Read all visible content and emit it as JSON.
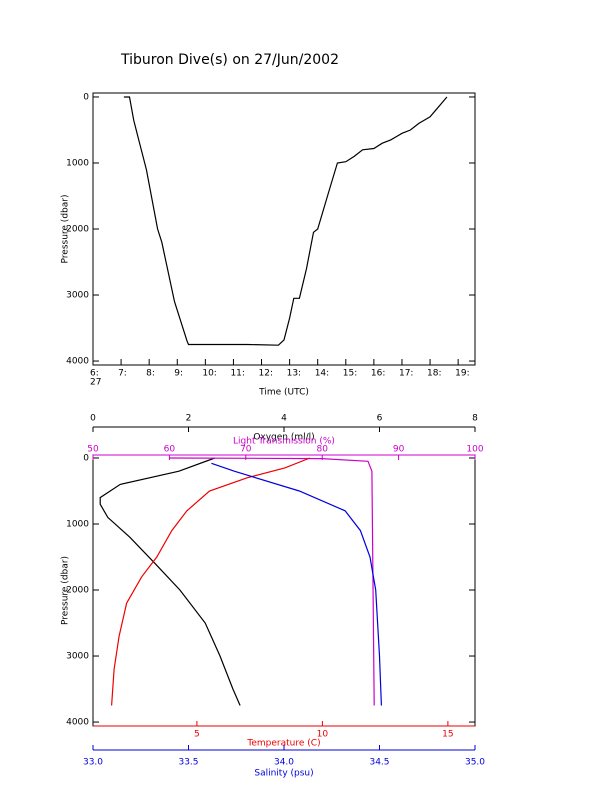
{
  "chart_data": [
    {
      "type": "line",
      "title": "Tiburon Dive(s) on 27/Jun/2002",
      "xlabel": "Time (UTC)",
      "ylabel": "Pressure (dbar)",
      "xlim": [
        6,
        19.6
      ],
      "xticks": [
        {
          "value": 6,
          "label": "6:"
        },
        {
          "value": 7,
          "label": "7:"
        },
        {
          "value": 8,
          "label": "8:"
        },
        {
          "value": 9,
          "label": "9:"
        },
        {
          "value": 10,
          "label": "10:"
        },
        {
          "value": 11,
          "label": "11:"
        },
        {
          "value": 12,
          "label": "12:"
        },
        {
          "value": 13,
          "label": "13:"
        },
        {
          "value": 14,
          "label": "14:"
        },
        {
          "value": 15,
          "label": "15:"
        },
        {
          "value": 16,
          "label": "16:"
        },
        {
          "value": 17,
          "label": "17:"
        },
        {
          "value": 18,
          "label": "18:"
        },
        {
          "value": 19,
          "label": "19:"
        }
      ],
      "x_date_label": "27",
      "ylim": [
        4060,
        -60
      ],
      "yticks": [
        0,
        1000,
        2000,
        3000,
        4000
      ],
      "series": [
        {
          "color": "#000000",
          "x": [
            7.1,
            7.3,
            7.45,
            7.6,
            7.9,
            8.3,
            8.45,
            8.9,
            9.05,
            9.35,
            9.4,
            10.5,
            11.5,
            12.6,
            12.8,
            13.0,
            13.15,
            13.35,
            13.6,
            13.85,
            14.0,
            14.35,
            14.7,
            15.0,
            15.3,
            15.6,
            16.0,
            16.3,
            16.6,
            16.8,
            17.0,
            17.3,
            17.6,
            17.8,
            18.0,
            18.2,
            18.4,
            18.6
          ],
          "values": [
            0,
            0,
            350,
            600,
            1100,
            2000,
            2200,
            3100,
            3300,
            3700,
            3750,
            3750,
            3750,
            3760,
            3680,
            3350,
            3050,
            3050,
            2600,
            2050,
            2000,
            1500,
            1000,
            980,
            900,
            800,
            780,
            700,
            650,
            600,
            550,
            500,
            400,
            350,
            300,
            200,
            100,
            0
          ]
        }
      ]
    },
    {
      "type": "profile",
      "ylabel": "Pressure (dbar)",
      "ylim": [
        4060,
        -45
      ],
      "yticks": [
        0,
        1000,
        2000,
        3000,
        4000
      ],
      "series": [
        {
          "name": "Oxygen (ml/l)",
          "color": "#000000",
          "xlim": [
            0,
            8
          ],
          "xticks": [
            0,
            2,
            4,
            6,
            8
          ],
          "x": [
            2.55,
            1.8,
            0.57,
            0.15,
            0.15,
            0.31,
            0.77,
            1.3,
            1.82,
            2.35,
            2.66,
            2.93,
            3.08
          ],
          "values": [
            0,
            200,
            400,
            600,
            700,
            900,
            1200,
            1600,
            2000,
            2500,
            3000,
            3500,
            3750
          ]
        },
        {
          "name": "Light Transmission (%)",
          "color": "#cc00cc",
          "xlim": [
            50,
            100
          ],
          "xticks": [
            50,
            60,
            70,
            80,
            90,
            100
          ],
          "x": [
            60,
            80,
            86,
            86.5,
            86.8
          ],
          "values": [
            0,
            10,
            50,
            200,
            3750
          ]
        },
        {
          "name": "Temperature (C)",
          "color": "#ee0000",
          "xlim": [
            0.86,
            16.08
          ],
          "xticks": [
            5,
            10,
            15
          ],
          "x": [
            9.5,
            8.5,
            7,
            5.5,
            4.6,
            4,
            3.4,
            2.8,
            2.2,
            1.9,
            1.7,
            1.6
          ],
          "values": [
            0,
            150,
            300,
            500,
            800,
            1100,
            1500,
            1800,
            2200,
            2700,
            3200,
            3750
          ]
        },
        {
          "name": "Salinity (psu)",
          "color": "#0000dd",
          "xlim": [
            33,
            35
          ],
          "xticks": [
            {
              "value": 33,
              "label": "33.0"
            },
            {
              "value": 33.5,
              "label": "33.5"
            },
            {
              "value": 34,
              "label": "34.0"
            },
            {
              "value": 34.5,
              "label": "34.5"
            },
            {
              "value": 35,
              "label": "35.0"
            }
          ],
          "x": [
            33.62,
            33.74,
            34.08,
            34.32,
            34.4,
            34.45,
            34.48,
            34.5,
            34.51
          ],
          "values": [
            80,
            200,
            500,
            800,
            1100,
            1500,
            2000,
            3000,
            3750
          ]
        }
      ]
    }
  ]
}
